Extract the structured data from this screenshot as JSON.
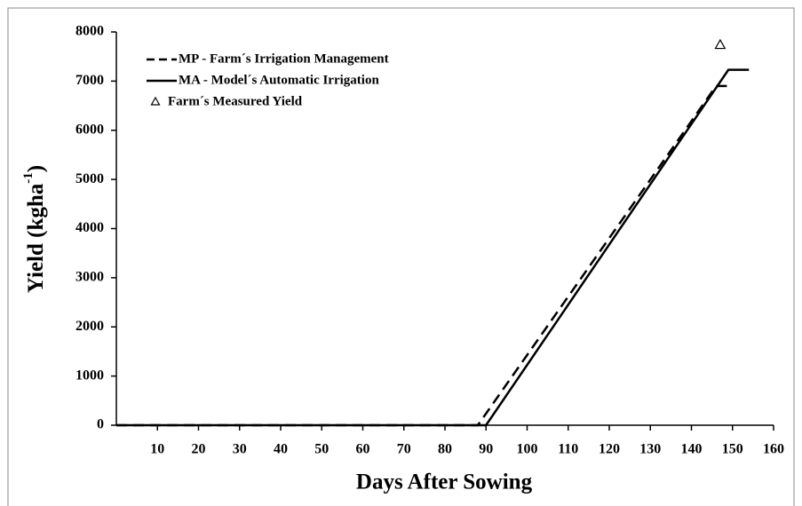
{
  "chart_data": {
    "type": "line",
    "xlabel": "Days After Sowing",
    "ylabel": {
      "text": "Yield (kgha",
      "sup": "-1",
      "end": ")"
    },
    "xlim": [
      0,
      160
    ],
    "xticks": [
      10,
      20,
      30,
      40,
      50,
      60,
      70,
      80,
      90,
      100,
      110,
      120,
      130,
      140,
      150,
      160
    ],
    "ylim": [
      0,
      8000
    ],
    "yticks": [
      0,
      1000,
      2000,
      3000,
      4000,
      5000,
      6000,
      7000,
      8000
    ],
    "legend": "upper left",
    "series": [
      {
        "name": "MP - Farm´s Irrigation Management",
        "color": "#000000",
        "style": "dashed",
        "x": [
          0,
          88,
          146,
          149
        ],
        "values": [
          0,
          0,
          6900,
          6900
        ]
      },
      {
        "name": "MA - Model´s Automatic Irrigation",
        "color": "#000000",
        "style": "solid",
        "x": [
          0,
          90,
          149,
          154
        ],
        "values": [
          0,
          0,
          7230,
          7230
        ]
      },
      {
        "name": "Farm´s Measured Yield",
        "color": "#000000",
        "style": "marker",
        "x": [
          147
        ],
        "values": [
          7730
        ]
      }
    ]
  }
}
